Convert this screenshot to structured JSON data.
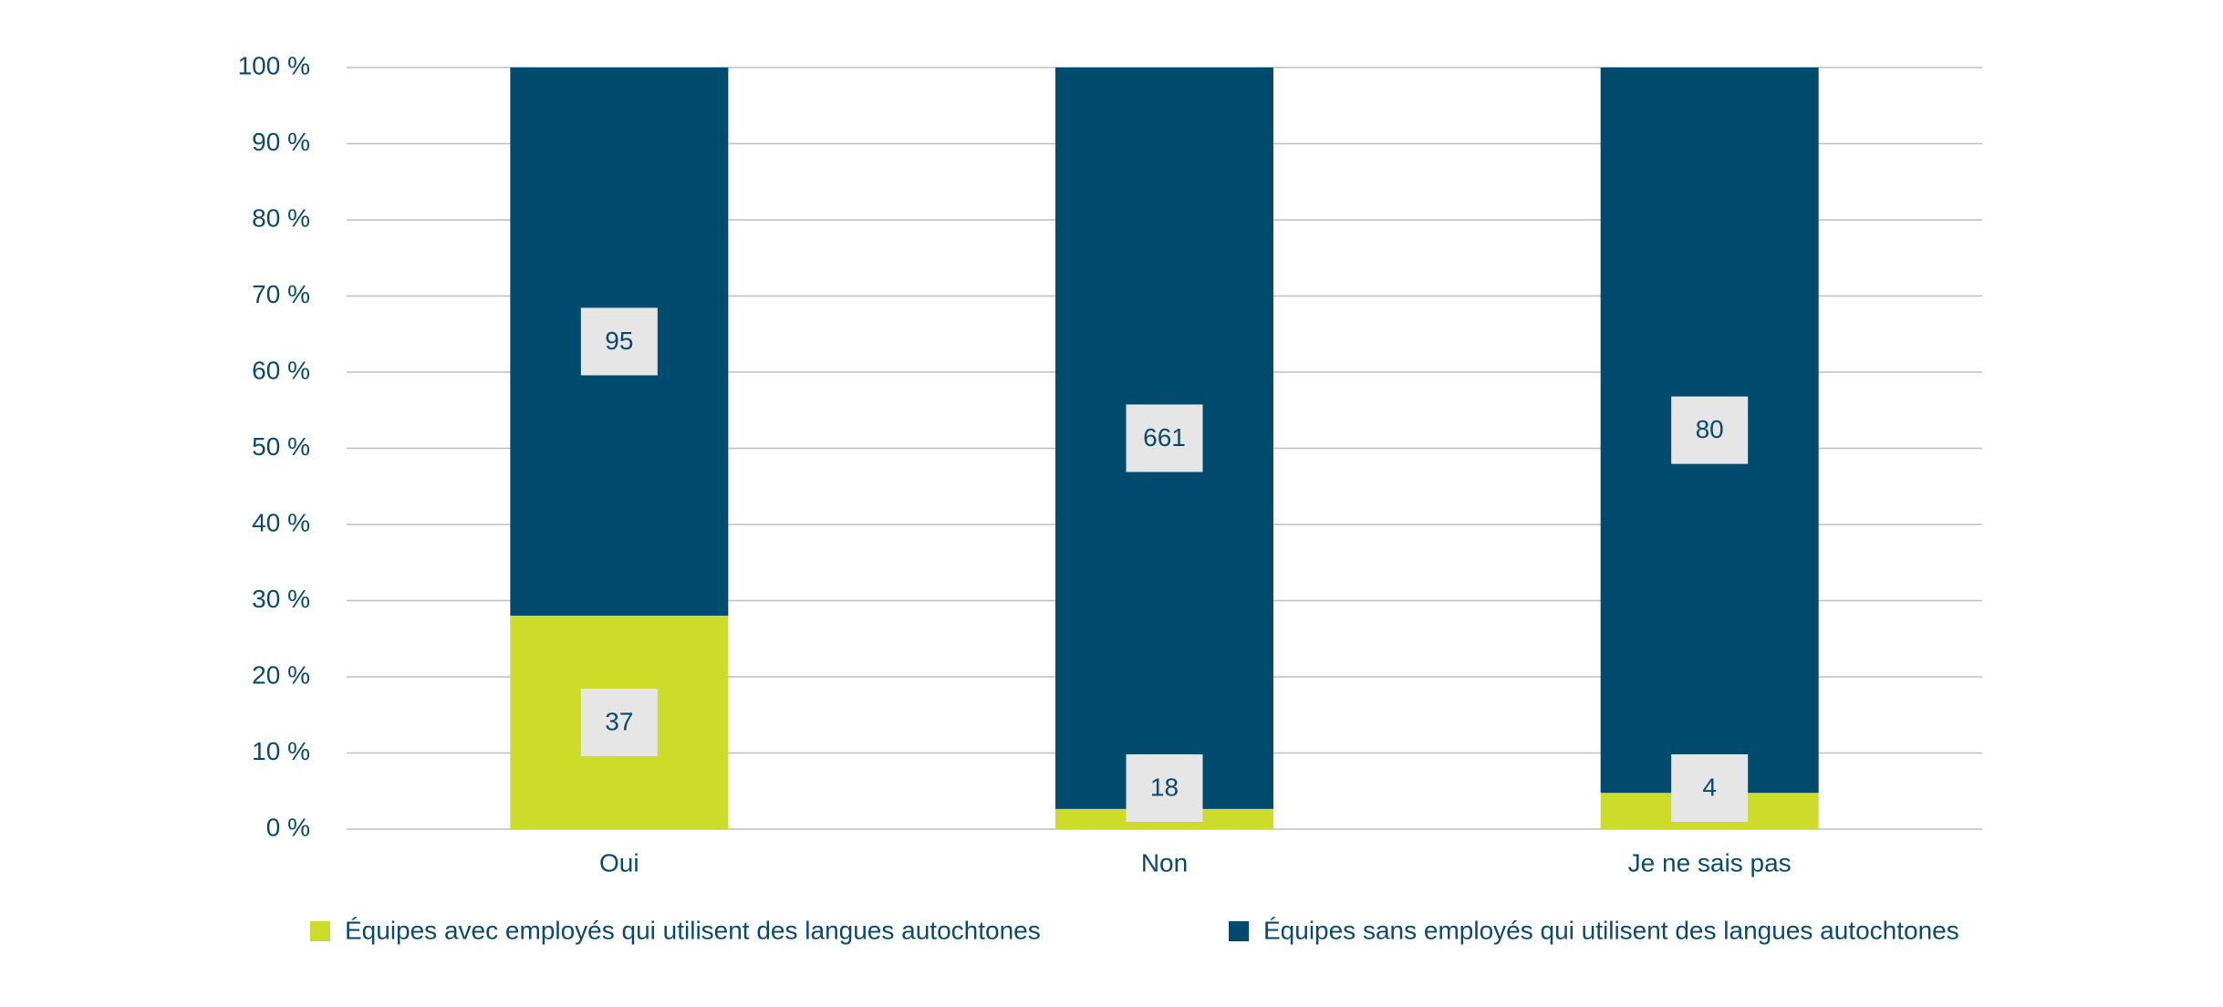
{
  "chart_data": {
    "type": "bar",
    "stacked": "percent",
    "categories": [
      "Oui",
      "Non",
      "Je ne sais pas"
    ],
    "series": [
      {
        "name": "Équipes avec employés qui utilisent des langues autochtones",
        "color": "#cddc29",
        "values": [
          37,
          18,
          4
        ]
      },
      {
        "name": "Équipes sans employés qui utilisent des langues autochtones",
        "color": "#004b6e",
        "values": [
          95,
          661,
          80
        ]
      }
    ],
    "ylim": [
      0,
      100
    ],
    "yticks": [
      {
        "value": 0,
        "label": "0 %"
      },
      {
        "value": 10,
        "label": "10 %"
      },
      {
        "value": 20,
        "label": "20 %"
      },
      {
        "value": 30,
        "label": "30 %"
      },
      {
        "value": 40,
        "label": "40 %"
      },
      {
        "value": 50,
        "label": "50 %"
      },
      {
        "value": 60,
        "label": "60 %"
      },
      {
        "value": 70,
        "label": "70 %"
      },
      {
        "value": 80,
        "label": "80 %"
      },
      {
        "value": 90,
        "label": "90 %"
      },
      {
        "value": 100,
        "label": "100 %"
      }
    ],
    "grid": true,
    "legend": "bottom"
  }
}
